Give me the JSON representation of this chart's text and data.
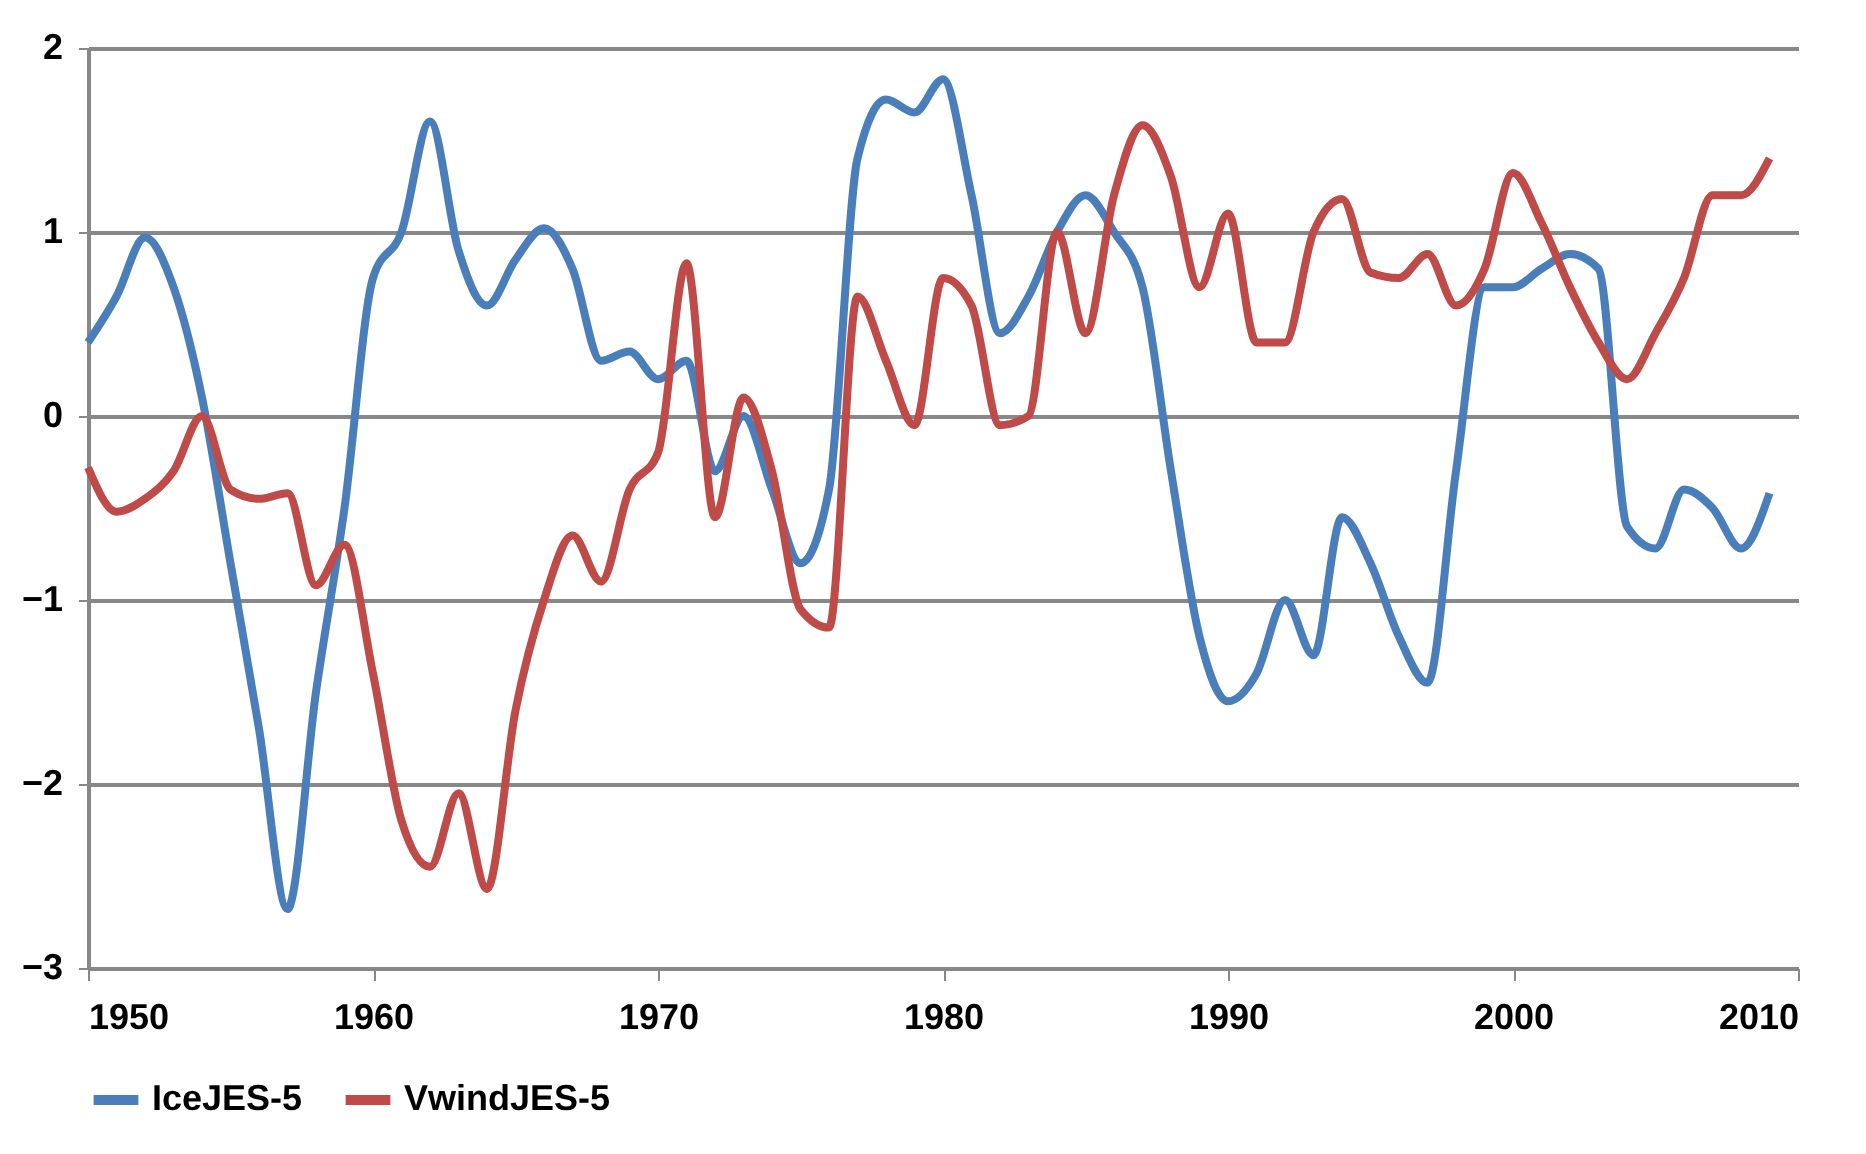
{
  "chart_data": {
    "type": "line",
    "x": [
      1950,
      1951,
      1952,
      1953,
      1954,
      1955,
      1956,
      1957,
      1958,
      1959,
      1960,
      1961,
      1962,
      1963,
      1964,
      1965,
      1966,
      1967,
      1968,
      1969,
      1970,
      1971,
      1972,
      1973,
      1974,
      1975,
      1976,
      1977,
      1978,
      1979,
      1980,
      1981,
      1982,
      1983,
      1984,
      1985,
      1986,
      1987,
      1988,
      1989,
      1990,
      1991,
      1992,
      1993,
      1994,
      1995,
      1996,
      1997,
      1998,
      1999,
      2000,
      2001,
      2002,
      2003,
      2004,
      2005,
      2006,
      2007,
      2008,
      2009
    ],
    "series": [
      {
        "name": "IceJES-5",
        "color": "#4a7ebb",
        "values": [
          0.4,
          0.65,
          0.97,
          0.7,
          0.1,
          -0.8,
          -1.7,
          -2.68,
          -1.5,
          -0.5,
          0.75,
          1.0,
          1.6,
          0.9,
          0.6,
          0.85,
          1.02,
          0.8,
          0.3,
          0.35,
          0.2,
          0.3,
          -0.3,
          0.0,
          -0.4,
          -0.8,
          -0.4,
          1.4,
          1.72,
          1.65,
          1.83,
          1.2,
          0.45,
          0.65,
          1.0,
          1.2,
          1.0,
          0.7,
          -0.3,
          -1.2,
          -1.55,
          -1.4,
          -1.0,
          -1.3,
          -0.55,
          -0.8,
          -1.2,
          -1.45,
          -0.3,
          0.7,
          0.7,
          0.8,
          0.88,
          0.8,
          -0.6,
          -0.72,
          -0.4,
          -0.5,
          -0.72,
          -0.42
        ]
      },
      {
        "name": "VwindJES-5",
        "color": "#be4b48",
        "values": [
          -0.28,
          -0.52,
          -0.45,
          -0.3,
          0.0,
          -0.4,
          -0.45,
          -0.42,
          -0.92,
          -0.7,
          -1.4,
          -2.2,
          -2.45,
          -2.05,
          -2.57,
          -1.6,
          -1.0,
          -0.65,
          -0.9,
          -0.4,
          -0.2,
          0.83,
          -0.55,
          0.1,
          -0.3,
          -1.05,
          -1.15,
          0.65,
          0.3,
          -0.05,
          0.75,
          0.6,
          -0.05,
          0.0,
          1.0,
          0.45,
          1.2,
          1.58,
          1.3,
          0.7,
          1.1,
          0.4,
          0.4,
          1.0,
          1.18,
          0.78,
          0.75,
          0.88,
          0.6,
          0.8,
          1.32,
          1.05,
          0.7,
          0.4,
          0.2,
          0.45,
          0.75,
          1.2,
          1.2,
          1.4
        ]
      }
    ],
    "xlim": [
      1950,
      2010
    ],
    "xticks": [
      1950,
      1960,
      1970,
      1980,
      1990,
      2000,
      2010
    ],
    "ylim": [
      -3,
      2
    ],
    "yticks": [
      -3,
      -2,
      -1,
      0,
      1,
      2
    ],
    "grid": "y",
    "legend": "bottom",
    "marker": "none",
    "line_style": "solid"
  }
}
